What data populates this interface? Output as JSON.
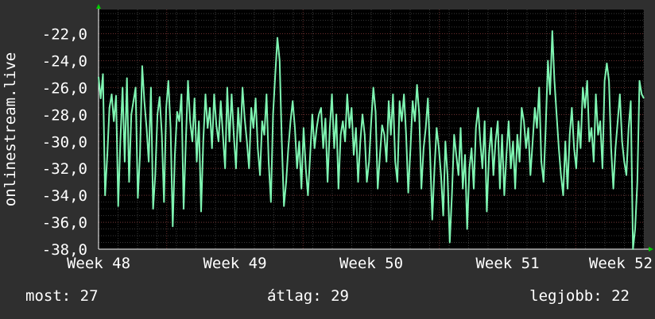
{
  "colors": {
    "background": "#2f2f2f",
    "plot_background": "#000000",
    "grid_minor": "#3a3a3a",
    "grid_major": "#6b2f2f",
    "line": "#7ff5b2",
    "axis_arrow": "#00cc00",
    "text": "#ffffff"
  },
  "chart_data": {
    "type": "line",
    "ylabel": "onlinestream.live",
    "xlabel": "",
    "title": "",
    "ylim": [
      -38,
      -20.2
    ],
    "yticks": [
      -38,
      -36,
      -34,
      -32,
      -30,
      -28,
      -26,
      -24,
      -22
    ],
    "ytick_labels": [
      "-38,0",
      "-36,0",
      "-34,0",
      "-32,0",
      "-30,0",
      "-28,0",
      "-26,0",
      "-24,0",
      "-22,0"
    ],
    "xlim": [
      0,
      4
    ],
    "xticks": [
      0,
      1,
      2,
      3,
      4
    ],
    "xtick_labels": [
      "Week 48",
      "Week 49",
      "Week 50",
      "Week 51",
      "Week 52"
    ],
    "grid": true,
    "series": [
      {
        "values": [
          -25.2,
          -26.8,
          -25.0,
          -34.0,
          -31.0,
          -27.5,
          -26.5,
          -28.5,
          -26.6,
          -34.8,
          -30.0,
          -26.0,
          -31.5,
          -25.3,
          -33.0,
          -28.0,
          -27.0,
          -26.0,
          -34.2,
          -31.0,
          -24.4,
          -27.0,
          -29.0,
          -31.5,
          -26.0,
          -35.0,
          -32.5,
          -28.0,
          -26.7,
          -29.5,
          -34.5,
          -27.5,
          -25.5,
          -29.0,
          -36.3,
          -31.0,
          -27.8,
          -28.5,
          -26.5,
          -35.0,
          -30.0,
          -25.5,
          -28.5,
          -30.0,
          -26.8,
          -31.5,
          -28.5,
          -35.2,
          -30.0,
          -26.5,
          -29.0,
          -27.5,
          -30.5,
          -26.5,
          -28.8,
          -30.0,
          -27.0,
          -29.5,
          -32.0,
          -26.0,
          -30.0,
          -26.5,
          -29.5,
          -32.0,
          -27.5,
          -30.0,
          -26.0,
          -28.3,
          -30.0,
          -32.0,
          -27.5,
          -29.0,
          -26.8,
          -30.5,
          -32.5,
          -28.5,
          -29.5,
          -26.5,
          -31.5,
          -34.5,
          -28.0,
          -25.0,
          -22.3,
          -24.0,
          -30.0,
          -34.8,
          -33.0,
          -30.5,
          -28.5,
          -27.0,
          -29.0,
          -32.0,
          -30.0,
          -33.5,
          -29.0,
          -32.0,
          -34.0,
          -31.0,
          -28.0,
          -30.5,
          -29.0,
          -28.0,
          -27.5,
          -30.5,
          -28.3,
          -33.0,
          -29.0,
          -26.5,
          -30.5,
          -28.0,
          -33.5,
          -29.5,
          -28.5,
          -30.0,
          -26.5,
          -29.0,
          -27.5,
          -31.0,
          -29.0,
          -33.0,
          -30.0,
          -28.0,
          -29.5,
          -33.0,
          -31.5,
          -28.5,
          -26.0,
          -27.8,
          -33.5,
          -31.0,
          -28.8,
          -29.5,
          -31.5,
          -27.0,
          -29.5,
          -26.5,
          -31.5,
          -33.0,
          -27.0,
          -28.5,
          -26.5,
          -29.5,
          -33.8,
          -30.5,
          -27.0,
          -28.5,
          -25.8,
          -28.0,
          -33.5,
          -30.5,
          -29.0,
          -26.8,
          -31.0,
          -35.8,
          -32.0,
          -29.0,
          -30.5,
          -32.5,
          -35.5,
          -30.0,
          -32.5,
          -37.5,
          -34.0,
          -29.5,
          -31.0,
          -32.5,
          -29.0,
          -33.5,
          -31.0,
          -36.5,
          -32.0,
          -30.5,
          -33.5,
          -29.0,
          -27.5,
          -30.0,
          -32.0,
          -28.5,
          -35.2,
          -31.0,
          -29.0,
          -32.5,
          -30.0,
          -28.5,
          -33.5,
          -29.5,
          -34.0,
          -31.0,
          -28.5,
          -32.0,
          -30.0,
          -33.5,
          -29.5,
          -31.5,
          -27.5,
          -28.5,
          -30.5,
          -29.0,
          -32.5,
          -30.0,
          -27.5,
          -29.0,
          -26.0,
          -31.5,
          -33.0,
          -29.0,
          -24.0,
          -26.5,
          -21.8,
          -25.5,
          -28.0,
          -30.5,
          -32.5,
          -34.0,
          -30.0,
          -33.5,
          -29.5,
          -27.5,
          -30.5,
          -32.0,
          -28.5,
          -30.5,
          -26.0,
          -27.5,
          -25.5,
          -30.0,
          -29.0,
          -31.5,
          -26.5,
          -29.5,
          -28.5,
          -32.0,
          -25.5,
          -24.2,
          -25.5,
          -30.5,
          -33.5,
          -30.5,
          -28.5,
          -26.5,
          -30.0,
          -31.5,
          -32.5,
          -29.0,
          -27.0,
          -38.0,
          -36.5,
          -33.0,
          -25.5,
          -26.5,
          -26.8
        ],
        "x_start": 0,
        "x_end": 4
      }
    ]
  },
  "stats": {
    "now": "most: 27",
    "avg": "átlag: 29",
    "best": "legjobb: 22"
  }
}
